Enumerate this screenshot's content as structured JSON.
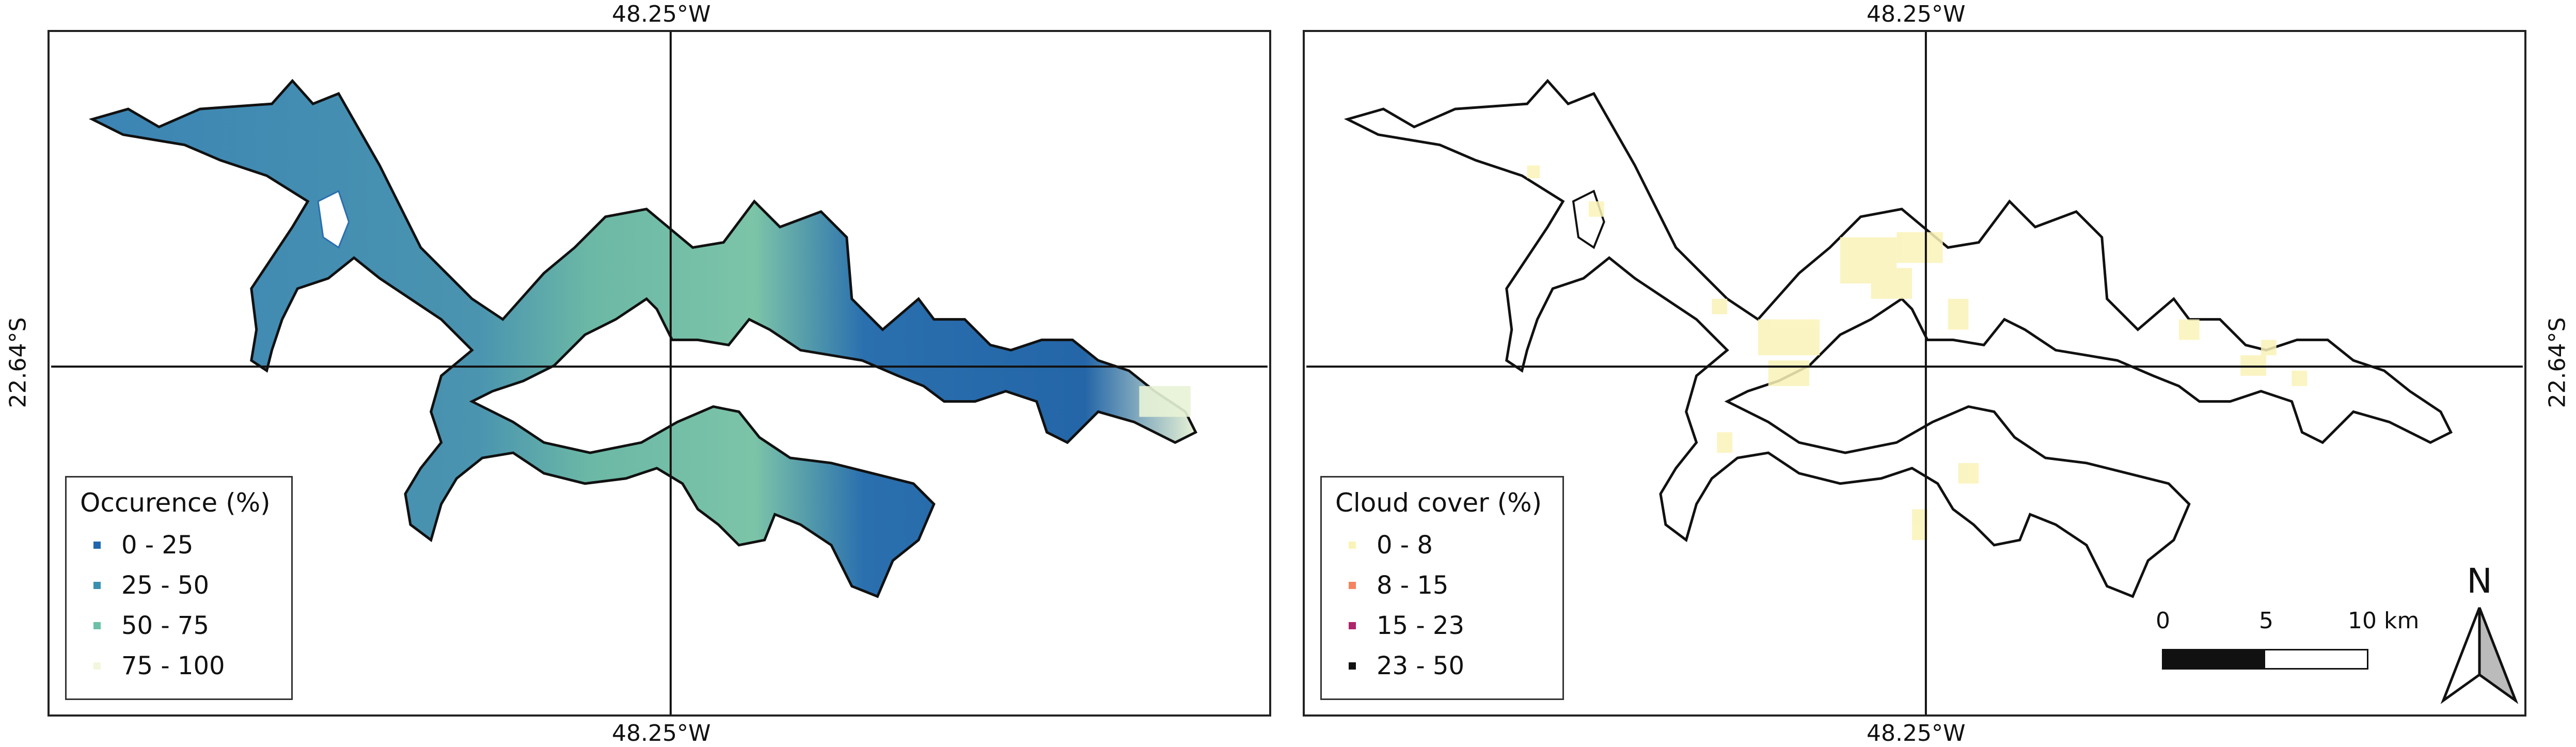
{
  "panels": {
    "left": {
      "coords": {
        "top": "48.25°W",
        "bottom": "48.25°W",
        "left": "22.64°S"
      },
      "legend": {
        "title": "Occurence (%)",
        "items": [
          {
            "label": "0 - 25",
            "color": "#2166ac"
          },
          {
            "label": "25 - 50",
            "color": "#3a8fb0"
          },
          {
            "label": "50 - 75",
            "color": "#6cc0a8"
          },
          {
            "label": "75 - 100",
            "color": "#f2f7dc"
          }
        ]
      }
    },
    "right": {
      "coords": {
        "top": "48.25°W",
        "bottom": "48.25°W",
        "right": "22.64°S"
      },
      "legend": {
        "title": "Cloud cover (%)",
        "items": [
          {
            "label": "0 - 8",
            "color": "#faf3b8"
          },
          {
            "label": "8 - 15",
            "color": "#f4845f"
          },
          {
            "label": "15 - 23",
            "color": "#b0246b"
          },
          {
            "label": "23 - 50",
            "color": "#111111"
          }
        ]
      },
      "scalebar": {
        "ticks": [
          "0",
          "5",
          "10 km"
        ]
      },
      "north_arrow": {
        "label": "N"
      }
    }
  },
  "colors": {
    "reservoir_main": "#3b7fb0",
    "reservoir_light": "#7cc4a8",
    "reservoir_pale": "#e8f3d6",
    "outline": "#111111",
    "cloud_patch": "#faf3b8"
  }
}
